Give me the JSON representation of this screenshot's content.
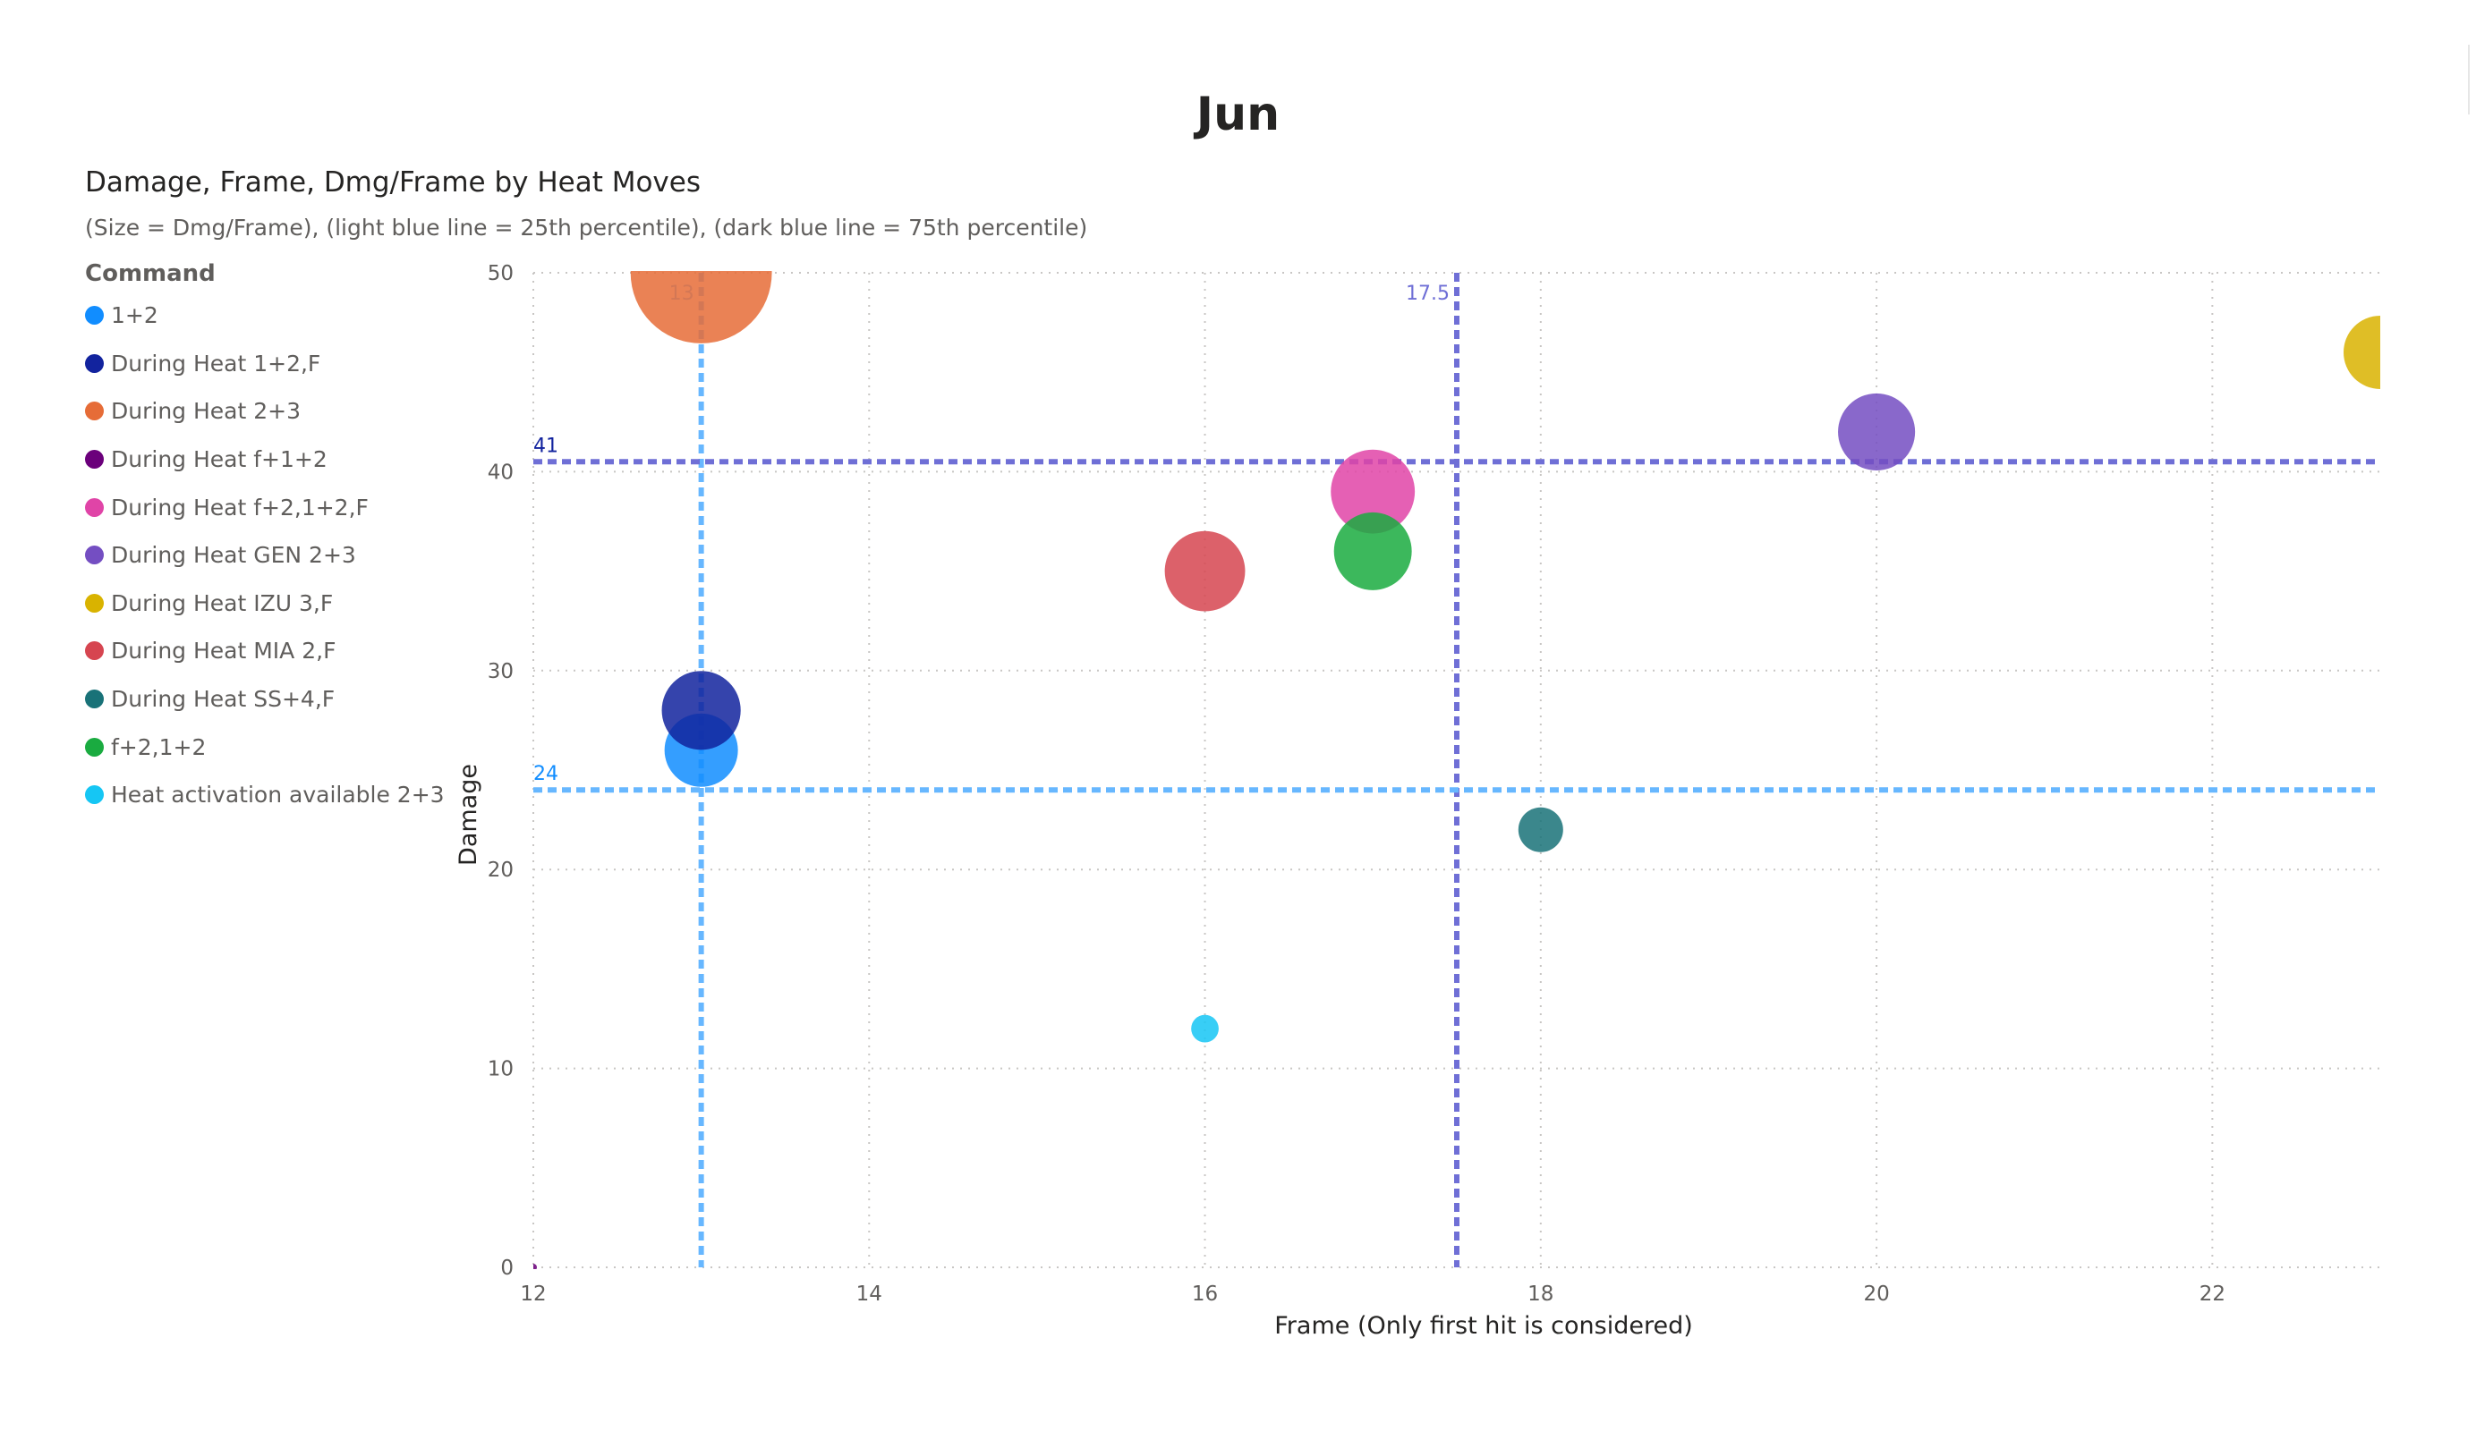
{
  "page": {
    "title": "Jun"
  },
  "visual": {
    "title": "Damage, Frame, Dmg/Frame by Heat Moves",
    "subtitle": "(Size = Dmg/Frame), (light blue line = 25th percentile), (dark blue line = 75th percentile)"
  },
  "chart_data": {
    "type": "scatter",
    "title": "Damage, Frame, Dmg/Frame by Heat Moves",
    "xlabel": "Frame (Only first hit is considered)",
    "ylabel": "Damage",
    "xlim": [
      12,
      23
    ],
    "ylim": [
      0,
      50
    ],
    "x_ticks": [
      "12",
      "14",
      "16",
      "18",
      "20",
      "22"
    ],
    "y_ticks": [
      "0",
      "10",
      "20",
      "30",
      "40",
      "50"
    ],
    "grid": true,
    "legend_title": "Command",
    "legend_position": "left",
    "size_field": "Dmg/Frame",
    "series": [
      {
        "name": "1+2",
        "color": "#118DFF",
        "x": 13,
        "y": 26,
        "size": 2.0
      },
      {
        "name": "During Heat 1+2,F",
        "color": "#12239E",
        "x": 13,
        "y": 28,
        "size": 2.15
      },
      {
        "name": "During Heat 2+3",
        "color": "#E66C37",
        "x": 13,
        "y": 50,
        "size": 3.85
      },
      {
        "name": "During Heat f+1+2",
        "color": "#6B007B",
        "x": 12,
        "y": 0,
        "size": 0
      },
      {
        "name": "During Heat f+2,1+2,F",
        "color": "#E044A7",
        "x": 17,
        "y": 39,
        "size": 2.29
      },
      {
        "name": "During Heat GEN 2+3",
        "color": "#744EC2",
        "x": 20,
        "y": 42,
        "size": 2.1
      },
      {
        "name": "During Heat IZU 3,F",
        "color": "#D9B300",
        "x": 23,
        "y": 46,
        "size": 2.0
      },
      {
        "name": "During Heat MIA 2,F",
        "color": "#D64550",
        "x": 16,
        "y": 35,
        "size": 2.19
      },
      {
        "name": "During Heat SS+4,F",
        "color": "#197278",
        "x": 18,
        "y": 22,
        "size": 1.22
      },
      {
        "name": "f+2,1+2",
        "color": "#1AAB40",
        "x": 17,
        "y": 36,
        "size": 2.12
      },
      {
        "name": "Heat activation available 2+3",
        "color": "#15C6F4",
        "x": 16,
        "y": 12,
        "size": 0.75
      }
    ],
    "reference_lines": [
      {
        "axis": "x",
        "value": 13,
        "label": "13",
        "color": "#67B7FF"
      },
      {
        "axis": "x",
        "value": 17.5,
        "label": "17.5",
        "color": "#6F6FD6"
      },
      {
        "axis": "y",
        "value": 24,
        "label": "24",
        "color": "#67B7FF"
      },
      {
        "axis": "y",
        "value": 40.5,
        "label": "41",
        "color": "#6F6FD6"
      }
    ]
  }
}
